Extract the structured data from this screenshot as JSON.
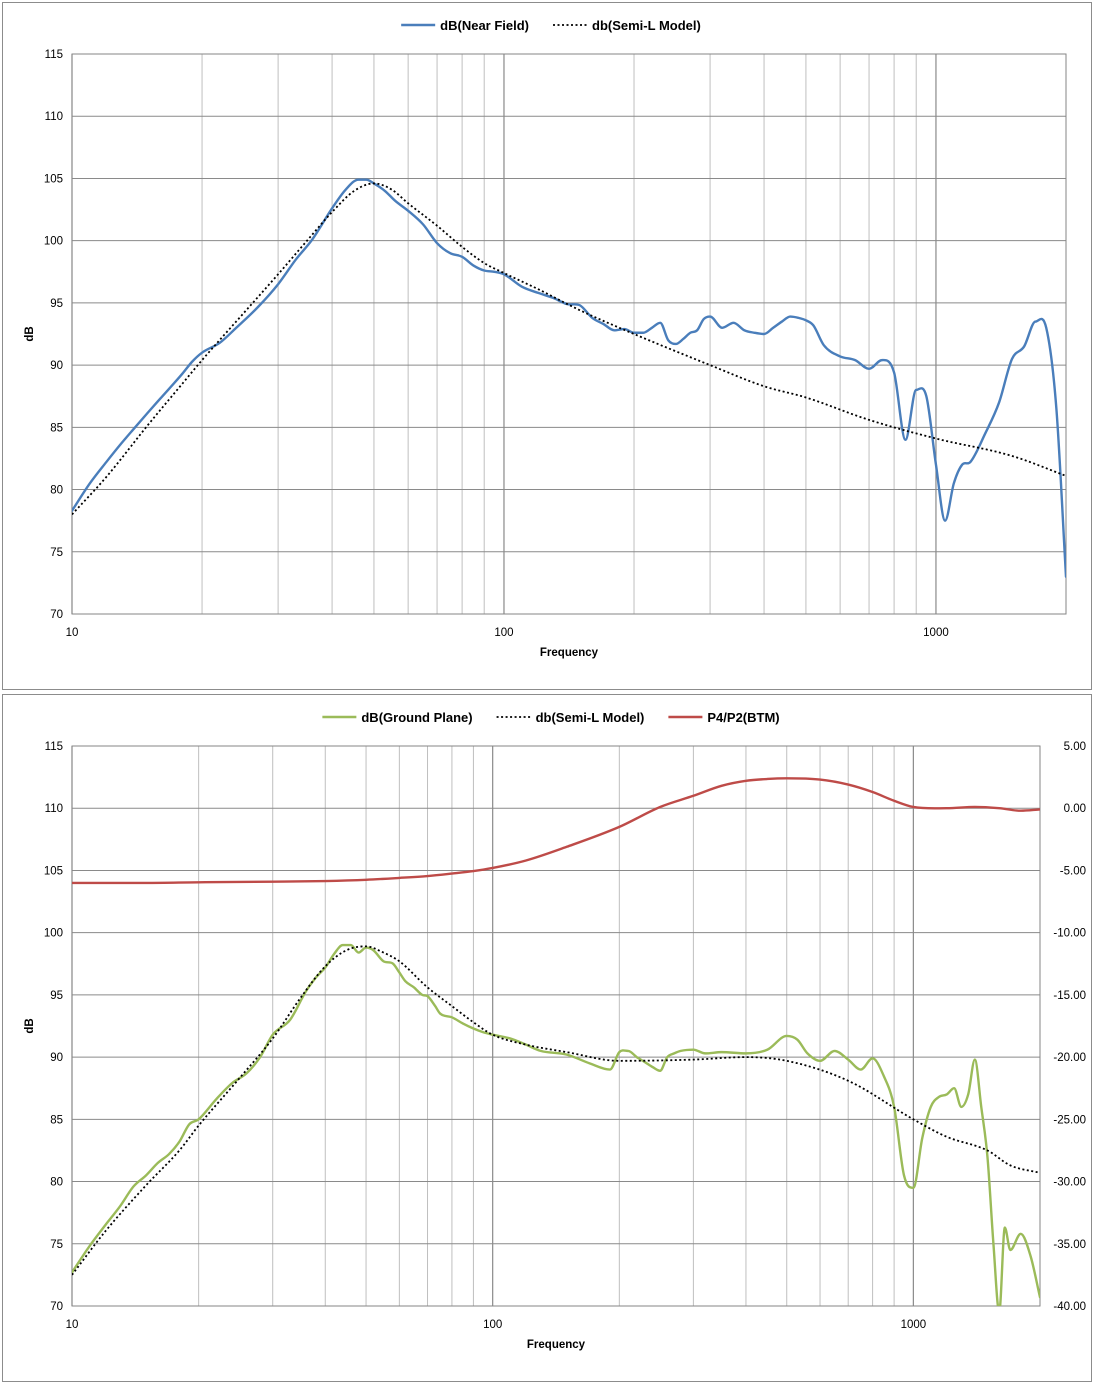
{
  "chart_data": [
    {
      "type": "line",
      "xlabel": "Frequency",
      "ylabel": "dB",
      "x_scale": "log",
      "xlim": [
        10,
        2000
      ],
      "ylim": [
        70,
        115
      ],
      "x_ticks": [
        "10",
        "100",
        "1000"
      ],
      "y_ticks": [
        "70",
        "75",
        "80",
        "85",
        "90",
        "95",
        "100",
        "105",
        "110",
        "115"
      ],
      "grid": true,
      "legend_position": "top-center",
      "series": [
        {
          "name": "dB(Near Field)",
          "color": "#4a7ebb",
          "style": "solid",
          "x": [
            10,
            11,
            12,
            13,
            14,
            15,
            16,
            18,
            19,
            20,
            22,
            24,
            27,
            30,
            33,
            36,
            40,
            43,
            46,
            48,
            50,
            53,
            56,
            60,
            65,
            70,
            75,
            80,
            85,
            90,
            95,
            100,
            110,
            120,
            130,
            140,
            150,
            160,
            170,
            180,
            190,
            200,
            210,
            220,
            230,
            240,
            250,
            260,
            270,
            280,
            290,
            300,
            320,
            340,
            360,
            380,
            400,
            420,
            440,
            460,
            480,
            500,
            520,
            550,
            600,
            650,
            700,
            750,
            800,
            850,
            900,
            950,
            1000,
            1050,
            1100,
            1150,
            1200,
            1300,
            1400,
            1500,
            1600,
            1700,
            1800,
            1900,
            2000
          ],
          "y": [
            78.3,
            80.5,
            82.2,
            83.7,
            85.0,
            86.2,
            87.3,
            89.3,
            90.3,
            91.0,
            91.8,
            93.0,
            94.7,
            96.5,
            98.5,
            100.1,
            102.6,
            104.1,
            104.9,
            104.9,
            104.6,
            104.0,
            103.2,
            102.4,
            101.3,
            99.8,
            99.0,
            98.7,
            98.0,
            97.6,
            97.5,
            97.3,
            96.3,
            95.8,
            95.4,
            94.9,
            94.8,
            93.8,
            93.3,
            92.8,
            92.9,
            92.6,
            92.6,
            93.0,
            93.4,
            92.0,
            91.7,
            92.1,
            92.6,
            92.8,
            93.7,
            93.9,
            93.0,
            93.4,
            92.8,
            92.6,
            92.5,
            93.0,
            93.5,
            93.9,
            93.8,
            93.6,
            93.2,
            91.6,
            90.7,
            90.4,
            89.7,
            90.4,
            89.4,
            84.0,
            88.0,
            87.5,
            82.0,
            77.5,
            80.5,
            82.0,
            82.2,
            84.5,
            87.0,
            90.5,
            91.5,
            93.5,
            93.0,
            86.5,
            73.0
          ]
        },
        {
          "name": "db(Semi-L Model)",
          "color": "#000000",
          "style": "dotted",
          "x": [
            10,
            12,
            15,
            18,
            20,
            25,
            30,
            35,
            40,
            45,
            50,
            55,
            60,
            70,
            80,
            90,
            100,
            120,
            150,
            200,
            300,
            400,
            500,
            700,
            1000,
            1500,
            2000
          ],
          "y": [
            78.0,
            81.0,
            85.2,
            88.5,
            90.4,
            94.2,
            97.3,
            100.0,
            102.3,
            104.0,
            104.6,
            104.1,
            103.0,
            101.2,
            99.5,
            98.2,
            97.4,
            96.1,
            94.4,
            92.5,
            90.0,
            88.3,
            87.4,
            85.6,
            84.1,
            82.7,
            81.1
          ]
        }
      ]
    },
    {
      "type": "line",
      "xlabel": "Frequency",
      "ylabel": "dB",
      "x_scale": "log",
      "xlim": [
        10,
        2000
      ],
      "ylim": [
        70,
        115
      ],
      "y2lim": [
        -40,
        5
      ],
      "x_ticks": [
        "10",
        "100",
        "1000"
      ],
      "y_ticks": [
        "70",
        "75",
        "80",
        "85",
        "90",
        "95",
        "100",
        "105",
        "110",
        "115"
      ],
      "y2_ticks": [
        "-40.00",
        "-35.00",
        "-30.00",
        "-25.00",
        "-20.00",
        "-15.00",
        "-10.00",
        "-5.00",
        "0.00",
        "5.00"
      ],
      "grid": true,
      "legend_position": "top-center",
      "series": [
        {
          "name": "dB(Ground Plane)",
          "color": "#9bbb59",
          "style": "solid",
          "axis": "left",
          "x": [
            10,
            11,
            12,
            13,
            14,
            15,
            16,
            17,
            18,
            19,
            20,
            22,
            24,
            26,
            28,
            30,
            33,
            36,
            38,
            40,
            42,
            44,
            46,
            48,
            50,
            52,
            55,
            58,
            60,
            62,
            65,
            68,
            70,
            73,
            75,
            80,
            85,
            90,
            95,
            100,
            110,
            120,
            130,
            150,
            170,
            190,
            200,
            210,
            220,
            230,
            240,
            250,
            260,
            270,
            280,
            300,
            320,
            350,
            400,
            450,
            500,
            530,
            560,
            600,
            650,
            700,
            750,
            800,
            850,
            900,
            950,
            1000,
            1050,
            1100,
            1150,
            1200,
            1250,
            1300,
            1350,
            1400,
            1450,
            1500,
            1550,
            1600,
            1650,
            1700,
            1800,
            1900,
            2000
          ],
          "y": [
            72.7,
            74.8,
            76.5,
            78.0,
            79.6,
            80.5,
            81.5,
            82.2,
            83.2,
            84.6,
            85.0,
            86.6,
            87.9,
            88.7,
            90.0,
            91.8,
            93.0,
            95.3,
            96.4,
            97.2,
            98.3,
            99.0,
            99.0,
            98.4,
            98.8,
            98.6,
            97.7,
            97.5,
            96.8,
            96.1,
            95.6,
            95.0,
            94.9,
            94.1,
            93.5,
            93.2,
            92.7,
            92.3,
            92.0,
            91.8,
            91.5,
            91.0,
            90.5,
            90.2,
            89.5,
            89.0,
            90.4,
            90.5,
            90.0,
            89.6,
            89.2,
            88.9,
            90.0,
            90.3,
            90.5,
            90.6,
            90.3,
            90.4,
            90.3,
            90.6,
            91.7,
            91.4,
            90.3,
            89.7,
            90.5,
            89.8,
            89.0,
            89.9,
            88.5,
            86.0,
            80.5,
            79.5,
            83.5,
            86.0,
            86.8,
            87.0,
            87.5,
            86.0,
            87.0,
            89.8,
            86.0,
            82.0,
            75.0,
            69.5,
            76.3,
            74.5,
            75.8,
            74.0,
            70.7
          ]
        },
        {
          "name": "db(Semi-L Model)",
          "color": "#000000",
          "style": "dotted",
          "axis": "left",
          "x": [
            10,
            12,
            15,
            18,
            20,
            25,
            30,
            35,
            40,
            45,
            50,
            55,
            60,
            70,
            80,
            90,
            100,
            120,
            150,
            200,
            300,
            400,
            500,
            700,
            1000,
            1200,
            1500,
            1700,
            2000
          ],
          "y": [
            72.5,
            76.0,
            79.7,
            82.5,
            84.5,
            88.3,
            91.5,
            94.8,
            97.3,
            98.6,
            98.9,
            98.4,
            97.7,
            95.6,
            94.1,
            92.8,
            91.8,
            91.0,
            90.4,
            89.7,
            89.8,
            90.0,
            89.7,
            88.1,
            85.0,
            83.6,
            82.5,
            81.3,
            80.7
          ]
        },
        {
          "name": "P4/P2(BTM)",
          "color": "#be4b48",
          "style": "solid",
          "axis": "right",
          "x": [
            10,
            15,
            20,
            30,
            40,
            50,
            60,
            70,
            80,
            90,
            100,
            120,
            150,
            200,
            250,
            300,
            350,
            400,
            450,
            500,
            600,
            700,
            800,
            900,
            1000,
            1200,
            1400,
            1600,
            1800,
            2000
          ],
          "y": [
            -6.0,
            -6.0,
            -5.95,
            -5.9,
            -5.85,
            -5.75,
            -5.6,
            -5.45,
            -5.25,
            -5.05,
            -4.8,
            -4.2,
            -3.1,
            -1.5,
            0.1,
            1.0,
            1.8,
            2.2,
            2.35,
            2.4,
            2.3,
            1.9,
            1.3,
            0.6,
            0.1,
            0.0,
            0.1,
            0.0,
            -0.2,
            -0.1
          ]
        }
      ]
    }
  ]
}
